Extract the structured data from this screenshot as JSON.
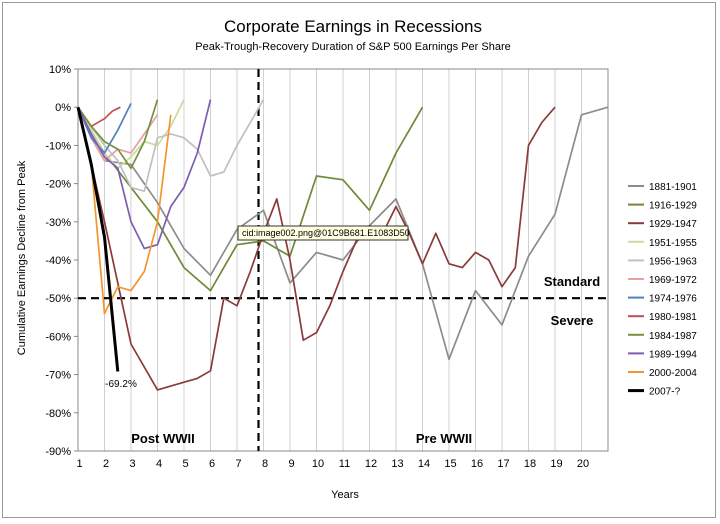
{
  "chart_data": {
    "type": "line",
    "title": "Corporate Earnings in Recessions",
    "subtitle": "Peak-Trough-Recovery Duration of S&P 500 Earnings Per Share",
    "xlabel": "Years",
    "ylabel": "Cumulative Earnings Decline from Peak",
    "xlim": [
      0,
      20
    ],
    "ylim": [
      -90,
      10
    ],
    "x_ticks": [
      {
        "value": 1,
        "label": "1"
      },
      {
        "value": 2,
        "label": "2"
      },
      {
        "value": 3,
        "label": "3"
      },
      {
        "value": 4,
        "label": "4"
      },
      {
        "value": 5,
        "label": "5"
      },
      {
        "value": 6,
        "label": "6"
      },
      {
        "value": 7,
        "label": "7"
      },
      {
        "value": 8,
        "label": "8"
      },
      {
        "value": 9,
        "label": "9"
      },
      {
        "value": 10,
        "label": "10"
      },
      {
        "value": 11,
        "label": "11"
      },
      {
        "value": 12,
        "label": "12"
      },
      {
        "value": 13,
        "label": "13"
      },
      {
        "value": 14,
        "label": "14"
      },
      {
        "value": 15,
        "label": "15"
      },
      {
        "value": 16,
        "label": "16"
      },
      {
        "value": 17,
        "label": "17"
      },
      {
        "value": 18,
        "label": "18"
      },
      {
        "value": 19,
        "label": "19"
      },
      {
        "value": 20,
        "label": "20"
      }
    ],
    "y_ticks": [
      {
        "value": 10,
        "label": "10%"
      },
      {
        "value": 0,
        "label": "0%"
      },
      {
        "value": -10,
        "label": "-10%"
      },
      {
        "value": -20,
        "label": "-20%"
      },
      {
        "value": -30,
        "label": "-30%"
      },
      {
        "value": -40,
        "label": "-40%"
      },
      {
        "value": -50,
        "label": "-50%"
      },
      {
        "value": -60,
        "label": "-60%"
      },
      {
        "value": -70,
        "label": "-70%"
      },
      {
        "value": -80,
        "label": "-80%"
      },
      {
        "value": -90,
        "label": "-90%"
      }
    ],
    "grid": "vertical",
    "legend_position": "right",
    "series": [
      {
        "name": "1881-1901",
        "color": "#8c8c8c",
        "x": [
          0,
          0.5,
          1,
          2,
          3,
          4,
          5,
          6,
          7,
          8,
          9,
          10,
          11,
          12,
          13,
          14,
          15,
          16,
          17,
          18,
          19,
          20
        ],
        "y": [
          0,
          -8,
          -14,
          -15,
          -25,
          -37,
          -44,
          -32,
          -27,
          -46,
          -38,
          -40,
          -31,
          -24,
          -41,
          -66,
          -48,
          -57,
          -39,
          -28,
          -2,
          0
        ]
      },
      {
        "name": "1916-1929",
        "color": "#6e8a36",
        "x": [
          0,
          1,
          2,
          3,
          4,
          5,
          6,
          7,
          8,
          9,
          10,
          11,
          12,
          13
        ],
        "y": [
          0,
          -12,
          -21,
          -30,
          -42,
          -48,
          -36,
          -35,
          -39,
          -18,
          -19,
          -27,
          -12,
          0
        ]
      },
      {
        "name": "1929-1947",
        "color": "#8b3a3a",
        "x": [
          0,
          1,
          2,
          3,
          4,
          4.5,
          5,
          5.5,
          6,
          6.5,
          7,
          7.5,
          8,
          8.5,
          9,
          9.5,
          10,
          10.5,
          11,
          11.5,
          12,
          12.5,
          13,
          13.5,
          14,
          14.5,
          15,
          15.5,
          16,
          16.5,
          17,
          17.5,
          18
        ],
        "y": [
          0,
          -30,
          -62,
          -74,
          -72,
          -71,
          -69,
          -50,
          -52,
          -43,
          -33,
          -24,
          -40,
          -61,
          -59,
          -52,
          -43,
          -35,
          -31,
          -33,
          -26,
          -33,
          -41,
          -33,
          -41,
          -42,
          -38,
          -40,
          -47,
          -42,
          -10,
          -4,
          0
        ]
      },
      {
        "name": "1951-1955",
        "color": "#c8dca0",
        "x": [
          0,
          0.5,
          1,
          1.5,
          2,
          2.5,
          3,
          3.5,
          4
        ],
        "y": [
          0,
          -6,
          -12,
          -16,
          -13,
          -9,
          -10,
          -5,
          2
        ]
      },
      {
        "name": "1956-1963",
        "color": "#c0c0c0",
        "x": [
          0,
          0.5,
          1,
          1.5,
          2,
          2.5,
          3,
          3.5,
          4,
          4.5,
          5,
          5.5,
          6,
          6.5,
          7
        ],
        "y": [
          0,
          -5,
          -10,
          -14,
          -21,
          -22,
          -8,
          -7,
          -8,
          -11,
          -18,
          -17,
          -10,
          -4,
          2
        ]
      },
      {
        "name": "1969-1972",
        "color": "#e8a0a0",
        "x": [
          0,
          0.5,
          1,
          1.5,
          2,
          2.5,
          3
        ],
        "y": [
          0,
          -8,
          -14,
          -11,
          -12,
          -7,
          -2
        ]
      },
      {
        "name": "1974-1976",
        "color": "#4f81bd",
        "x": [
          0,
          0.5,
          1,
          1.5,
          2
        ],
        "y": [
          0,
          -8,
          -12,
          -6,
          1
        ]
      },
      {
        "name": "1980-1981",
        "color": "#c0504d",
        "x": [
          0,
          0.5,
          1,
          1.3,
          1.6
        ],
        "y": [
          0,
          -5,
          -3,
          -1,
          0
        ]
      },
      {
        "name": "1984-1987",
        "color": "#76923c",
        "x": [
          0,
          0.5,
          1,
          1.5,
          2,
          2.5,
          3
        ],
        "y": [
          0,
          -5,
          -9,
          -11,
          -16,
          -9,
          2
        ]
      },
      {
        "name": "1989-1994",
        "color": "#7e5cb0",
        "x": [
          0,
          0.5,
          1,
          1.5,
          2,
          2.5,
          3,
          3.5,
          4,
          4.5,
          5
        ],
        "y": [
          0,
          -7,
          -13,
          -16,
          -30,
          -37,
          -36,
          -26,
          -21,
          -12,
          2
        ]
      },
      {
        "name": "2000-2004",
        "color": "#f29630",
        "x": [
          0,
          0.5,
          1,
          1.5,
          2,
          2.5,
          3,
          3.5
        ],
        "y": [
          0,
          -15,
          -54,
          -47,
          -48,
          -43,
          -30,
          -2
        ]
      },
      {
        "name": "2007-?",
        "color": "#000000",
        "x": [
          0,
          0.5,
          1,
          1.5
        ],
        "y": [
          0,
          -15,
          -34,
          -69.2
        ]
      }
    ],
    "annotations": {
      "series_end_label": "-69.2%",
      "label_standard": "Standard",
      "label_severe": "Severe",
      "label_post": "Post WWII",
      "label_pre": "Pre WWII",
      "image_tooltip": "cid:image002.png@01C9B681.E1083D50",
      "threshold_value": -50,
      "divider_x": 7
    }
  }
}
